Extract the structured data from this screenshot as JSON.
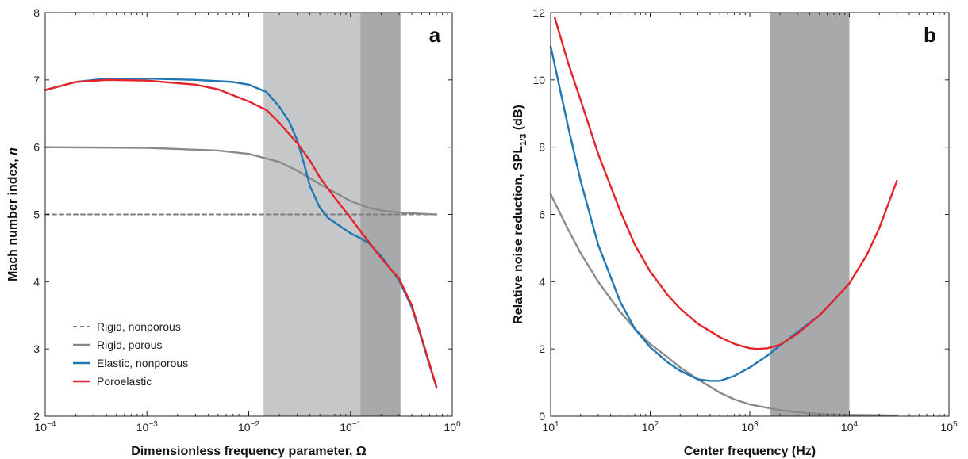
{
  "chart_data": [
    {
      "type": "line",
      "panel_label": "a",
      "xlabel": "Dimensionless frequency parameter, Ω",
      "ylabel": "Mach number index, n",
      "xscale": "log",
      "xlim": [
        0.0001,
        1
      ],
      "ylim": [
        2,
        8
      ],
      "xticks": [
        {
          "value": 0.0001,
          "base": "10",
          "exp": "−4"
        },
        {
          "value": 0.001,
          "base": "10",
          "exp": "−3"
        },
        {
          "value": 0.01,
          "base": "10",
          "exp": "−2"
        },
        {
          "value": 0.1,
          "base": "10",
          "exp": "−1"
        },
        {
          "value": 1,
          "base": "10",
          "exp": "0"
        }
      ],
      "yticks": [
        2,
        3,
        4,
        5,
        6,
        7,
        8
      ],
      "shaded_regions": [
        {
          "x_range": [
            0.014,
            0.125
          ],
          "color": "#c6c7c9"
        },
        {
          "x_range": [
            0.125,
            0.31
          ],
          "color": "#a8a9ab"
        }
      ],
      "legend": {
        "position": "lower-left",
        "entries": [
          "Rigid, nonporous",
          "Rigid, porous",
          "Elastic, nonporous",
          "Poroelastic"
        ]
      },
      "series": [
        {
          "name": "Rigid, nonporous",
          "color": "#7d7d7d",
          "dashed": true,
          "x": [
            0.0001,
            0.7
          ],
          "y": [
            5.0,
            5.0
          ]
        },
        {
          "name": "Rigid, porous",
          "color": "#8a8a8a",
          "dashed": false,
          "x": [
            0.0001,
            0.001,
            0.005,
            0.01,
            0.02,
            0.03,
            0.05,
            0.08,
            0.1,
            0.15,
            0.2,
            0.3,
            0.5,
            0.7
          ],
          "y": [
            6.0,
            5.99,
            5.95,
            5.9,
            5.78,
            5.65,
            5.45,
            5.28,
            5.2,
            5.1,
            5.06,
            5.03,
            5.01,
            5.0
          ]
        },
        {
          "name": "Elastic, nonporous",
          "color": "#1f77b4",
          "dashed": false,
          "x": [
            0.0001,
            0.0002,
            0.0004,
            0.001,
            0.003,
            0.007,
            0.01,
            0.015,
            0.02,
            0.025,
            0.03,
            0.035,
            0.04,
            0.05,
            0.06,
            0.08,
            0.1,
            0.12,
            0.15,
            0.2,
            0.25,
            0.3,
            0.4,
            0.5,
            0.6,
            0.7
          ],
          "y": [
            6.85,
            6.97,
            7.02,
            7.02,
            7.0,
            6.97,
            6.93,
            6.82,
            6.6,
            6.38,
            6.1,
            5.75,
            5.42,
            5.1,
            4.95,
            4.82,
            4.72,
            4.66,
            4.58,
            4.38,
            4.18,
            4.02,
            3.62,
            3.15,
            2.75,
            2.43
          ]
        },
        {
          "name": "Poroelastic",
          "color": "#e3242b",
          "dashed": false,
          "x": [
            0.0001,
            0.0002,
            0.0004,
            0.001,
            0.003,
            0.005,
            0.01,
            0.015,
            0.02,
            0.03,
            0.04,
            0.05,
            0.07,
            0.1,
            0.13,
            0.15,
            0.2,
            0.25,
            0.3,
            0.4,
            0.5,
            0.6,
            0.7
          ],
          "y": [
            6.85,
            6.97,
            7.0,
            6.99,
            6.93,
            6.86,
            6.68,
            6.55,
            6.36,
            6.06,
            5.8,
            5.55,
            5.25,
            4.95,
            4.72,
            4.6,
            4.35,
            4.18,
            4.05,
            3.65,
            3.17,
            2.77,
            2.43
          ]
        }
      ]
    },
    {
      "type": "line",
      "panel_label": "b",
      "xlabel": "Center frequency (Hz)",
      "ylabel_main": "Relative noise reduction, SPL",
      "ylabel_sub": "1/3",
      "ylabel_end": " (dB)",
      "xscale": "log",
      "xlim": [
        10,
        100000
      ],
      "ylim": [
        0,
        12
      ],
      "xticks": [
        {
          "value": 10,
          "base": "10",
          "exp": "1"
        },
        {
          "value": 100,
          "base": "10",
          "exp": "2"
        },
        {
          "value": 1000,
          "base": "10",
          "exp": "3"
        },
        {
          "value": 10000,
          "base": "10",
          "exp": "4"
        },
        {
          "value": 100000,
          "base": "10",
          "exp": "5"
        }
      ],
      "yticks": [
        0,
        2,
        4,
        6,
        8,
        10,
        12
      ],
      "shaded_regions": [
        {
          "x_range": [
            1600,
            10000
          ],
          "color": "#a8a9ab"
        }
      ],
      "series": [
        {
          "name": "",
          "color": "#8a8a8a",
          "x": [
            10,
            15,
            20,
            30,
            50,
            70,
            100,
            150,
            200,
            300,
            500,
            700,
            1000,
            2000,
            3000,
            5000,
            10000,
            20000,
            30000
          ],
          "y": [
            6.6,
            5.55,
            4.85,
            4.0,
            3.1,
            2.6,
            2.15,
            1.75,
            1.45,
            1.1,
            0.7,
            0.5,
            0.35,
            0.18,
            0.12,
            0.07,
            0.04,
            0.03,
            0.02
          ]
        },
        {
          "name": "",
          "color": "#1f77b4",
          "x": [
            10,
            15,
            20,
            30,
            50,
            70,
            100,
            150,
            200,
            300,
            400,
            500,
            700,
            1000,
            1500,
            2000,
            3000,
            5000,
            7000,
            10000
          ],
          "y": [
            11.0,
            8.6,
            7.0,
            5.1,
            3.4,
            2.6,
            2.05,
            1.6,
            1.35,
            1.1,
            1.05,
            1.05,
            1.2,
            1.45,
            1.8,
            2.1,
            2.5,
            3.0,
            3.45,
            3.95
          ]
        },
        {
          "name": "",
          "color": "#e3242b",
          "x": [
            11,
            15,
            20,
            30,
            50,
            70,
            100,
            150,
            200,
            300,
            500,
            700,
            1000,
            1200,
            1500,
            2000,
            3000,
            5000,
            7000,
            10000,
            15000,
            20000,
            30000
          ],
          "y": [
            11.85,
            10.5,
            9.4,
            7.8,
            6.1,
            5.1,
            4.3,
            3.6,
            3.2,
            2.75,
            2.35,
            2.15,
            2.02,
            2.0,
            2.02,
            2.12,
            2.45,
            3.0,
            3.45,
            3.95,
            4.8,
            5.6,
            7.0
          ]
        }
      ]
    }
  ]
}
